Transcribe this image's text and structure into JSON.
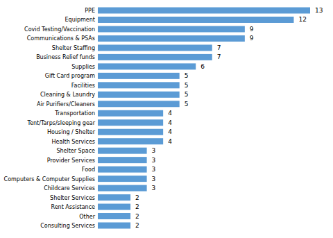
{
  "chart_data": {
    "type": "bar",
    "orientation": "horizontal",
    "categories": [
      "PPE",
      "Equipment",
      "Covid Testing/Vaccination",
      "Communications & PSAs",
      "Shelter Staffing",
      "Business Relief funds",
      "Supplies",
      "Gift Card program",
      "Facilities",
      "Cleaning & Laundry",
      "Air Purifiers/Cleaners",
      "Transportation",
      "Tent/Tarps/sleeping gear",
      "Housing / Shelter",
      "Health Services",
      "Shelter Space",
      "Provider Services",
      "Food",
      "Computers & Computer Supplies",
      "Childcare Services",
      "Shelter Services",
      "Rent Assistance",
      "Other",
      "Consulting Services"
    ],
    "values": [
      13,
      12,
      9,
      9,
      7,
      7,
      6,
      5,
      5,
      5,
      5,
      4,
      4,
      4,
      4,
      3,
      3,
      3,
      3,
      3,
      2,
      2,
      2,
      2
    ],
    "color": "#5b9bd5",
    "xlim": [
      0,
      13
    ],
    "data_labels": true,
    "tick_labels": "y",
    "grid": false
  }
}
